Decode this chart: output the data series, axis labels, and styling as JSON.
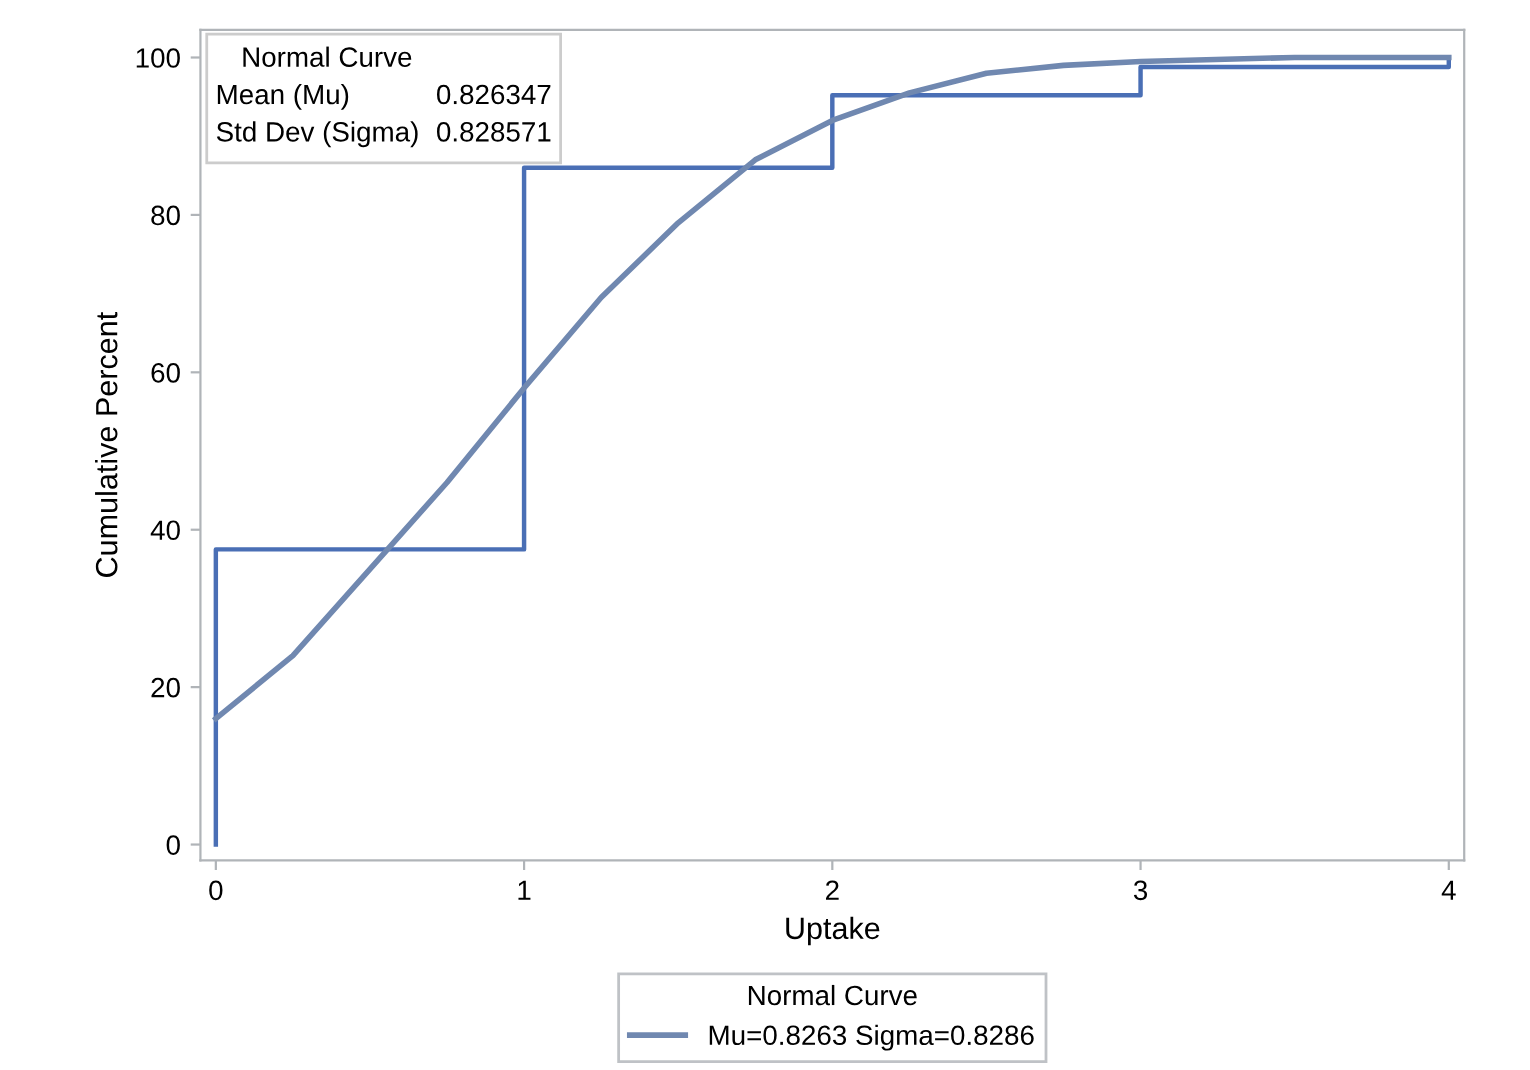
{
  "chart_data": {
    "type": "line",
    "xlabel": "Uptake",
    "ylabel": "Cumulative Percent",
    "legend_title": "Normal Curve",
    "xlim": [
      -0.05,
      4.05
    ],
    "ylim": [
      -2,
      103.5
    ],
    "xticks": [
      0,
      1,
      2,
      3,
      4
    ],
    "yticks": [
      0,
      20,
      40,
      60,
      80,
      100
    ],
    "grid": false,
    "legend": "bottom",
    "annotations": [
      "Normal Curve",
      "Mean (Mu)",
      "0.826347",
      "Std Dev (Sigma)",
      "0.828571"
    ],
    "series": [
      {
        "type": "step",
        "color": "#4a6fb5",
        "x": [
          0,
          0,
          1,
          2,
          3,
          4
        ],
        "values": [
          0,
          37.5,
          86,
          95.2,
          98.8,
          100
        ]
      },
      {
        "name": "Mu=0.8263 Sigma=0.8286",
        "color": "#7088b0",
        "x": [
          0,
          0.25,
          0.5,
          0.75,
          1.0,
          1.25,
          1.5,
          1.75,
          2.0,
          2.25,
          2.5,
          2.75,
          3.0,
          3.5,
          4.0
        ],
        "values": [
          16,
          24,
          35,
          46,
          58,
          69.5,
          79,
          87,
          92,
          95.5,
          98,
          99,
          99.5,
          100,
          100
        ]
      }
    ]
  }
}
